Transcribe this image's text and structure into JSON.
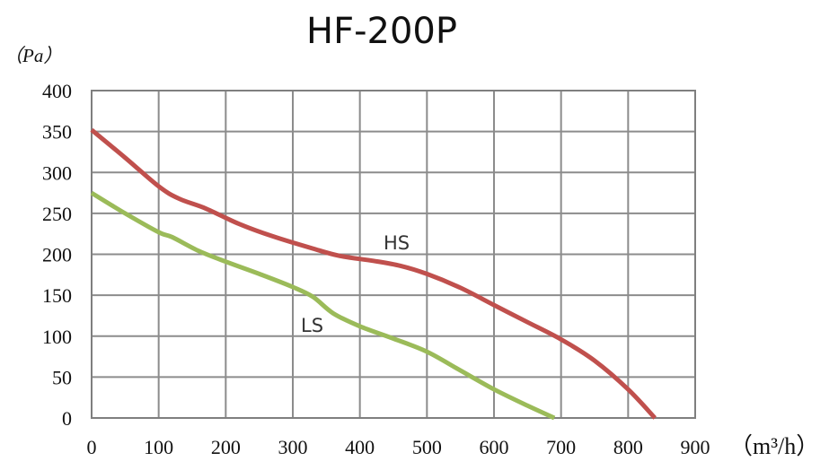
{
  "chart_data": {
    "type": "line",
    "title": "HF-200P",
    "ylabel": "（Pa）",
    "xlabel": "（m³/h）",
    "xlim": [
      0,
      900
    ],
    "ylim": [
      0,
      400
    ],
    "xticks": [
      "0",
      "100",
      "200",
      "300",
      "400",
      "500",
      "600",
      "700",
      "800",
      "900"
    ],
    "yticks": [
      "0",
      "50",
      "100",
      "150",
      "200",
      "250",
      "300",
      "350",
      "400"
    ],
    "grid": true,
    "series": [
      {
        "name": "HS",
        "color": "#c0504d",
        "x": [
          0,
          50,
          100,
          130,
          170,
          220,
          270,
          330,
          370,
          420,
          460,
          500,
          550,
          600,
          650,
          700,
          750,
          800,
          840
        ],
        "y": [
          352,
          318,
          283,
          268,
          256,
          237,
          222,
          207,
          198,
          192,
          186,
          176,
          159,
          138,
          117,
          96,
          70,
          35,
          0
        ]
      },
      {
        "name": "LS",
        "color": "#9bbb59",
        "x": [
          0,
          50,
          100,
          120,
          160,
          200,
          250,
          300,
          330,
          360,
          400,
          450,
          500,
          550,
          600,
          650,
          690
        ],
        "y": [
          275,
          250,
          227,
          221,
          204,
          191,
          176,
          160,
          148,
          128,
          112,
          97,
          81,
          58,
          35,
          15,
          0
        ]
      }
    ]
  }
}
